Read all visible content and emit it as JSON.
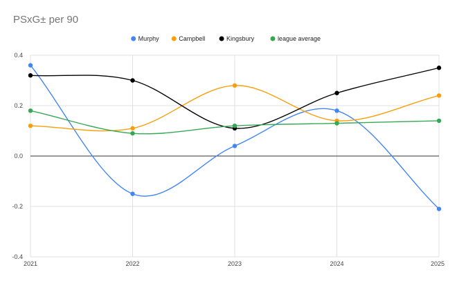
{
  "chart_data": {
    "type": "line",
    "title": "PSxG± per 90",
    "x": [
      "2021",
      "2022",
      "2023",
      "2024",
      "2025"
    ],
    "ylim": [
      -0.4,
      0.4
    ],
    "yticks": [
      "0.4",
      "0.2",
      "0.0",
      "-0.2",
      "-0.4"
    ],
    "ytick_values": [
      0.4,
      0.2,
      0.0,
      -0.2,
      -0.4
    ],
    "grid": true,
    "legend": "top-center",
    "smooth": true,
    "series": [
      {
        "name": "Murphy",
        "color": "#4285f4",
        "values": [
          0.36,
          -0.15,
          0.04,
          0.18,
          -0.21
        ]
      },
      {
        "name": "Campbell",
        "color": "#fb9e0b",
        "values": [
          0.12,
          0.11,
          0.28,
          0.14,
          0.24
        ]
      },
      {
        "name": "Kingsbury",
        "color": "#000000",
        "values": [
          0.32,
          0.3,
          0.11,
          0.25,
          0.35
        ]
      },
      {
        "name": "league average",
        "color": "#34a853",
        "values": [
          0.18,
          0.09,
          0.12,
          0.13,
          0.14
        ]
      }
    ]
  }
}
